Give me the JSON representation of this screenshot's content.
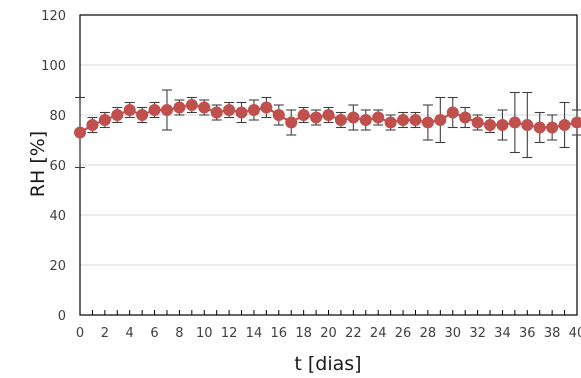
{
  "chart_data": {
    "type": "line",
    "xlabel": "t [dias]",
    "ylabel": "RH [%]",
    "xlim": [
      0,
      40
    ],
    "ylim": [
      0,
      120
    ],
    "x_ticks": [
      0,
      2,
      4,
      6,
      8,
      10,
      12,
      14,
      16,
      18,
      20,
      22,
      24,
      26,
      28,
      30,
      32,
      34,
      36,
      38,
      40
    ],
    "y_ticks": [
      0,
      20,
      40,
      60,
      80,
      100,
      120
    ],
    "grid": "horizontal",
    "legend": "none",
    "series": [
      {
        "color": "#c0504d",
        "errorbar_color": "#404040",
        "x": [
          0,
          1,
          2,
          3,
          4,
          5,
          6,
          7,
          8,
          9,
          10,
          11,
          12,
          13,
          14,
          15,
          16,
          17,
          18,
          19,
          20,
          21,
          22,
          23,
          24,
          25,
          26,
          27,
          28,
          29,
          30,
          31,
          32,
          33,
          34,
          35,
          36,
          37,
          38,
          39,
          40
        ],
        "y": [
          73,
          76,
          78,
          80,
          82,
          80,
          82,
          82,
          83,
          84,
          83,
          81,
          82,
          81,
          82,
          83,
          80,
          77,
          80,
          79,
          80,
          78,
          79,
          78,
          79,
          77,
          78,
          78,
          77,
          78,
          81,
          79,
          77,
          76,
          76,
          77,
          76,
          75,
          75,
          76,
          77
        ],
        "error": [
          14,
          3,
          3,
          3,
          3,
          3,
          3,
          8,
          3,
          3,
          3,
          3,
          3,
          4,
          4,
          4,
          4,
          5,
          3,
          3,
          3,
          3,
          5,
          4,
          3,
          3,
          3,
          3,
          7,
          9,
          6,
          4,
          3,
          3,
          6,
          12,
          13,
          6,
          5,
          9,
          5
        ]
      }
    ]
  }
}
